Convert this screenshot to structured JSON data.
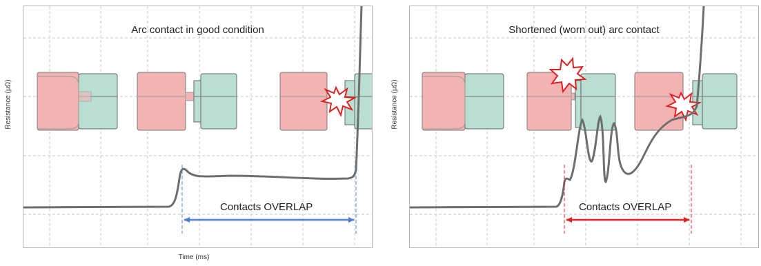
{
  "y_axis_label": "Resistance (µΩ)",
  "x_axis_label": "Time (ms)",
  "panels": [
    {
      "title": "Arc contact in good condition",
      "overlap_label": "Contacts OVERLAP",
      "arrow_color": "#4a7fd0"
    },
    {
      "title": "Shortened (worn out) arc contact",
      "overlap_label": "Contacts OVERLAP",
      "arrow_color": "#e02020"
    }
  ],
  "colors": {
    "moving_contact": "#f4b3b3",
    "fixed_contact": "#b9ded2",
    "curve": "#6e6e6e",
    "arc_flash": "#e02020",
    "grid": "#c8c8c8"
  }
}
